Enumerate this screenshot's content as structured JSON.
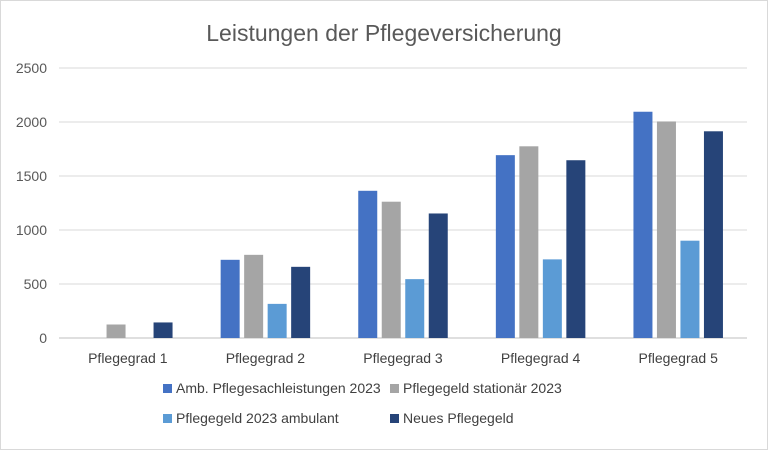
{
  "chart_data": {
    "type": "bar",
    "title": "Leistungen der Pflegeversicherung",
    "xlabel": "",
    "ylabel": "",
    "ylim": [
      0,
      2500
    ],
    "yticks": [
      0,
      500,
      1000,
      1500,
      2000,
      2500
    ],
    "grid": true,
    "legend_position": "bottom",
    "categories": [
      "Pflegegrad 1",
      "Pflegegrad 2",
      "Pflegegrad 3",
      "Pflegegrad 4",
      "Pflegegrad 5"
    ],
    "series": [
      {
        "name": "Amb. Pflegesachleistungen 2023",
        "color": "#4472c4",
        "values": [
          0,
          724,
          1363,
          1693,
          2095
        ]
      },
      {
        "name": "Pflegegeld stationär 2023",
        "color": "#a5a5a5",
        "values": [
          125,
          770,
          1262,
          1775,
          2005
        ]
      },
      {
        "name": "Pflegegeld 2023 ambulant",
        "color": "#5b9bd5",
        "values": [
          0,
          316,
          545,
          728,
          901
        ]
      },
      {
        "name": "Neues Pflegegeld",
        "color": "#264478",
        "values": [
          144,
          659,
          1153,
          1646,
          1914
        ]
      }
    ]
  }
}
